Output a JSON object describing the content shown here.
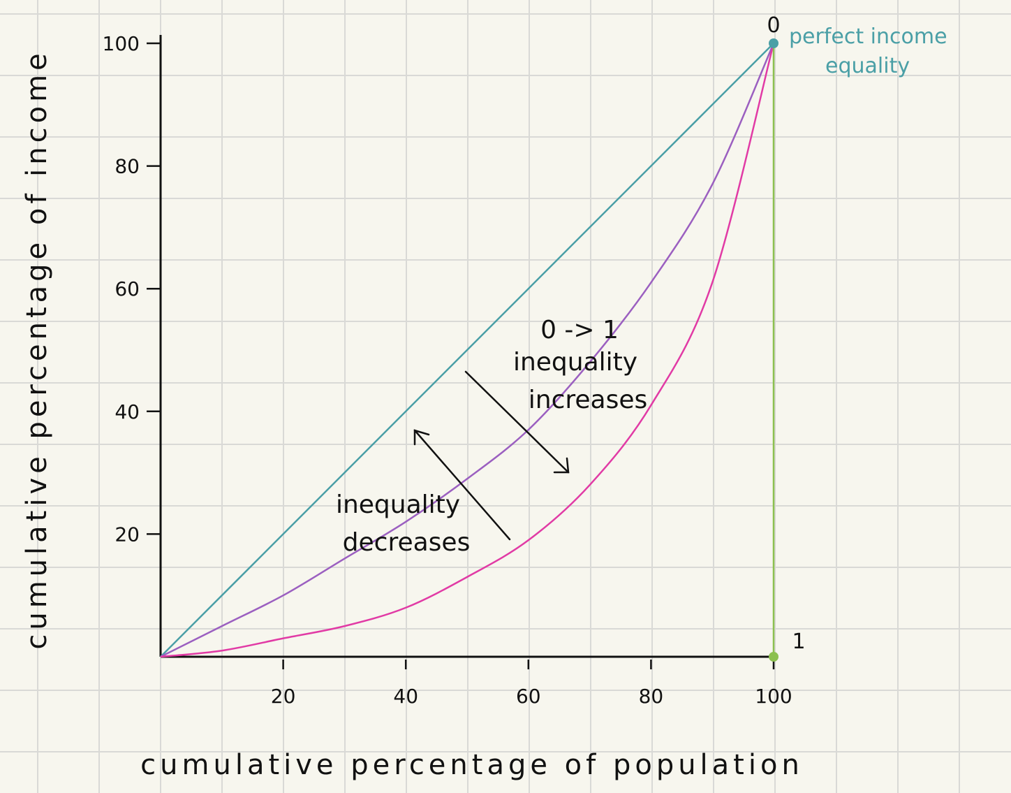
{
  "chart_data": {
    "type": "line",
    "title": "",
    "xlabel": "cumulative percentage of population",
    "ylabel": "cumulative percentage of income",
    "xlim": [
      0,
      100
    ],
    "ylim": [
      0,
      100
    ],
    "x_ticks": [
      20,
      40,
      60,
      80,
      100
    ],
    "y_ticks": [
      20,
      40,
      60,
      80,
      100
    ],
    "x_tick_labels": [
      "20",
      "40",
      "60",
      "80",
      "100"
    ],
    "y_tick_labels": [
      "20",
      "40",
      "60",
      "80",
      "100"
    ],
    "grid": true,
    "series": [
      {
        "color": "#4a9fa6",
        "x": [
          0,
          20,
          40,
          60,
          80,
          100
        ],
        "y": [
          0,
          20,
          40,
          60,
          80,
          100
        ]
      },
      {
        "color": "#9b5fc0",
        "x": [
          0,
          10,
          20,
          30,
          40,
          50,
          60,
          70,
          80,
          90,
          100
        ],
        "y": [
          0,
          5,
          10,
          16,
          22,
          29,
          37,
          48,
          61,
          77,
          100
        ]
      },
      {
        "color": "#e13aa5",
        "x": [
          0,
          10,
          20,
          30,
          40,
          50,
          60,
          70,
          80,
          90,
          100
        ],
        "y": [
          0,
          1,
          3,
          5,
          8,
          13,
          19,
          28,
          41,
          61,
          100
        ]
      },
      {
        "color": "#8cc04f",
        "x": [
          100,
          100
        ],
        "y": [
          0,
          100
        ]
      }
    ],
    "points": [
      {
        "x": 100,
        "y": 100,
        "color": "#4a9fa6",
        "label": "0"
      },
      {
        "x": 100,
        "y": 0,
        "color": "#8cc04f",
        "label": "1"
      }
    ],
    "annotations": {
      "perfect_equality_line1": "perfect income",
      "perfect_equality_line2": "equality",
      "gini_range": "0 -> 1",
      "increases_line1": "inequality",
      "increases_line2": "increases",
      "decreases_line1": "inequality",
      "decreases_line2": "decreases"
    }
  }
}
